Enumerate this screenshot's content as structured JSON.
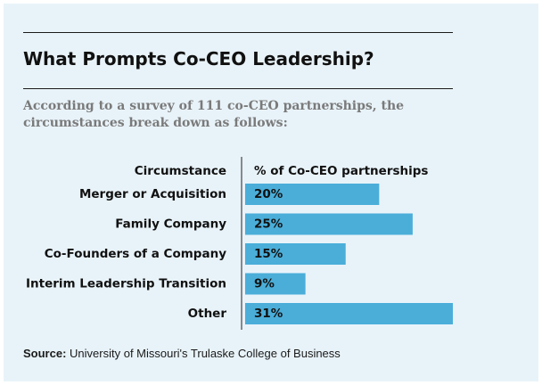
{
  "title": "What Prompts Co-CEO Leadership?",
  "subtitle": "According to a survey of 111 co-CEO partnerships, the circumstances break down as follows:",
  "source": {
    "label": "Source:",
    "text": "University of Missouri's Trulaske College of Business"
  },
  "colors": {
    "bar": "#4aaed9",
    "background": "#e8f3f9"
  },
  "chart_data": {
    "type": "bar",
    "orientation": "horizontal",
    "category_header": "Circumstance",
    "value_header": "% of Co-CEO partnerships",
    "categories": [
      "Merger or Acquisition",
      "Family Company",
      "Co-Founders of a Company",
      "Interim Leadership Transition",
      "Other"
    ],
    "values": [
      20,
      25,
      15,
      9,
      31
    ],
    "value_labels": [
      "20%",
      "25%",
      "15%",
      "9%",
      "31%"
    ],
    "unit": "%",
    "xlim": [
      0,
      31
    ],
    "grid": false,
    "legend": "none"
  }
}
